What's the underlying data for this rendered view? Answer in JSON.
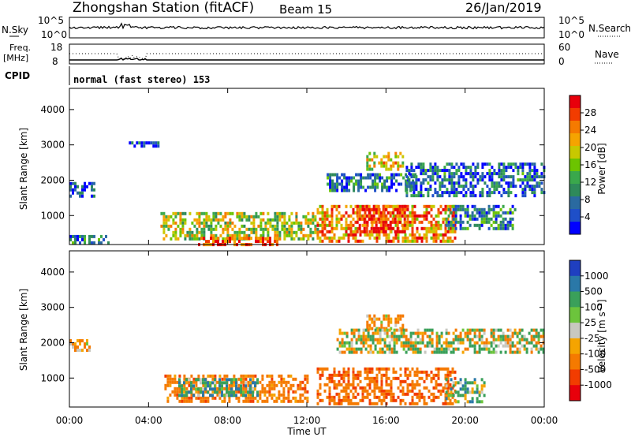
{
  "header": {
    "station": "Zhongshan Station (fitACF)",
    "beam": "Beam 15",
    "date": "26/Jan/2019"
  },
  "top_panels": {
    "nsky_label": "N.Sky",
    "nsky_ticks": [
      "10^5",
      "10^0"
    ],
    "nsearch_label": "N.Search",
    "nsearch_ticks": [
      "10^5",
      "10^0"
    ],
    "freq_label_line1": "Freq.",
    "freq_label_line2": "[MHz]",
    "freq_ticks": [
      "18",
      "8"
    ],
    "nave_label": "Nave",
    "nave_ticks": [
      "60",
      "0"
    ],
    "cpid_label": "CPID",
    "cpid_value": "normal (fast stereo) 153"
  },
  "power_colorbar": {
    "label": "Power [dB]",
    "ticks": [
      "28",
      "24",
      "20",
      "16",
      "12",
      "8",
      "4"
    ],
    "colors": [
      "#e8000b",
      "#f23c00",
      "#f57a00",
      "#f5a400",
      "#c8c800",
      "#6cc400",
      "#3aa84c",
      "#2e8a5a",
      "#2a6aa0",
      "#1e4fc8",
      "#0000ff"
    ]
  },
  "velocity_colorbar": {
    "label": "Velocity [m s⁻¹]",
    "ticks": [
      "1000",
      "500",
      "100",
      "25",
      "-25",
      "-100",
      "-500",
      "-1000"
    ],
    "colors": [
      "#1f3fc0",
      "#2a78a8",
      "#3aa05a",
      "#6cc43c",
      "#c8c8c0",
      "#f5a400",
      "#f57a00",
      "#f23c00",
      "#e8000b"
    ]
  },
  "axes": {
    "ylabel": "Slant Range [km]",
    "xlabel": "Time UT",
    "yticks": [
      "4000",
      "3000",
      "2000",
      "1000"
    ],
    "xticks": [
      "00:00",
      "04:00",
      "08:00",
      "12:00",
      "16:00",
      "20:00",
      "00:00"
    ]
  },
  "chart_data": [
    {
      "type": "heatmap",
      "name": "power_panel",
      "xlabel": "Time UT",
      "ylabel": "Slant Range [km]",
      "xlim_hours": [
        0,
        24
      ],
      "ylim_km": [
        180,
        4600
      ],
      "colorbar_label": "Power [dB]",
      "colorbar_ticks": [
        4,
        8,
        12,
        16,
        20,
        24,
        28
      ],
      "regions": [
        {
          "t0": 0.0,
          "t1": 1.3,
          "r0": 1550,
          "r1": 1950,
          "level": 4
        },
        {
          "t0": 0.0,
          "t1": 2.0,
          "r0": 200,
          "r1": 450,
          "level": 8
        },
        {
          "t0": 3.0,
          "t1": 4.5,
          "r0": 2950,
          "r1": 3100,
          "level": 5
        },
        {
          "t0": 4.6,
          "t1": 12.5,
          "r0": 300,
          "r1": 1100,
          "level": 16
        },
        {
          "t0": 6.5,
          "t1": 10.5,
          "r0": 200,
          "r1": 400,
          "level": 26
        },
        {
          "t0": 12.5,
          "t1": 19.5,
          "r0": 300,
          "r1": 1300,
          "level": 22
        },
        {
          "t0": 14.5,
          "t1": 17.0,
          "r0": 500,
          "r1": 1300,
          "level": 27
        },
        {
          "t0": 13.0,
          "t1": 17.5,
          "r0": 1700,
          "r1": 2200,
          "level": 8
        },
        {
          "t0": 15.0,
          "t1": 16.8,
          "r0": 2350,
          "r1": 2800,
          "level": 18
        },
        {
          "t0": 17.0,
          "t1": 24.0,
          "r0": 1600,
          "r1": 2500,
          "level": 7
        },
        {
          "t0": 19.0,
          "t1": 22.5,
          "r0": 600,
          "r1": 1300,
          "level": 9
        }
      ]
    },
    {
      "type": "heatmap",
      "name": "velocity_panel",
      "xlabel": "Time UT",
      "ylabel": "Slant Range [km]",
      "xlim_hours": [
        0,
        24
      ],
      "ylim_km": [
        180,
        4600
      ],
      "colorbar_label": "Velocity [m s⁻¹]",
      "colorbar_ticks": [
        -1000,
        -500,
        -100,
        -25,
        25,
        100,
        500,
        1000
      ],
      "regions": [
        {
          "t0": 0.0,
          "t1": 1.0,
          "r0": 1800,
          "r1": 2100,
          "value": -200
        },
        {
          "t0": 4.8,
          "t1": 12.0,
          "r0": 300,
          "r1": 1100,
          "value": -300
        },
        {
          "t0": 5.5,
          "t1": 9.5,
          "r0": 500,
          "r1": 1000,
          "value": 200
        },
        {
          "t0": 12.5,
          "t1": 19.5,
          "r0": 300,
          "r1": 1300,
          "value": -400
        },
        {
          "t0": 15.0,
          "t1": 16.8,
          "r0": 2400,
          "r1": 2800,
          "value": -200
        },
        {
          "t0": 13.5,
          "t1": 24.0,
          "r0": 1700,
          "r1": 2400,
          "value": 0
        },
        {
          "t0": 19.0,
          "t1": 21.0,
          "r0": 300,
          "r1": 1000,
          "value": 150
        }
      ]
    }
  ]
}
